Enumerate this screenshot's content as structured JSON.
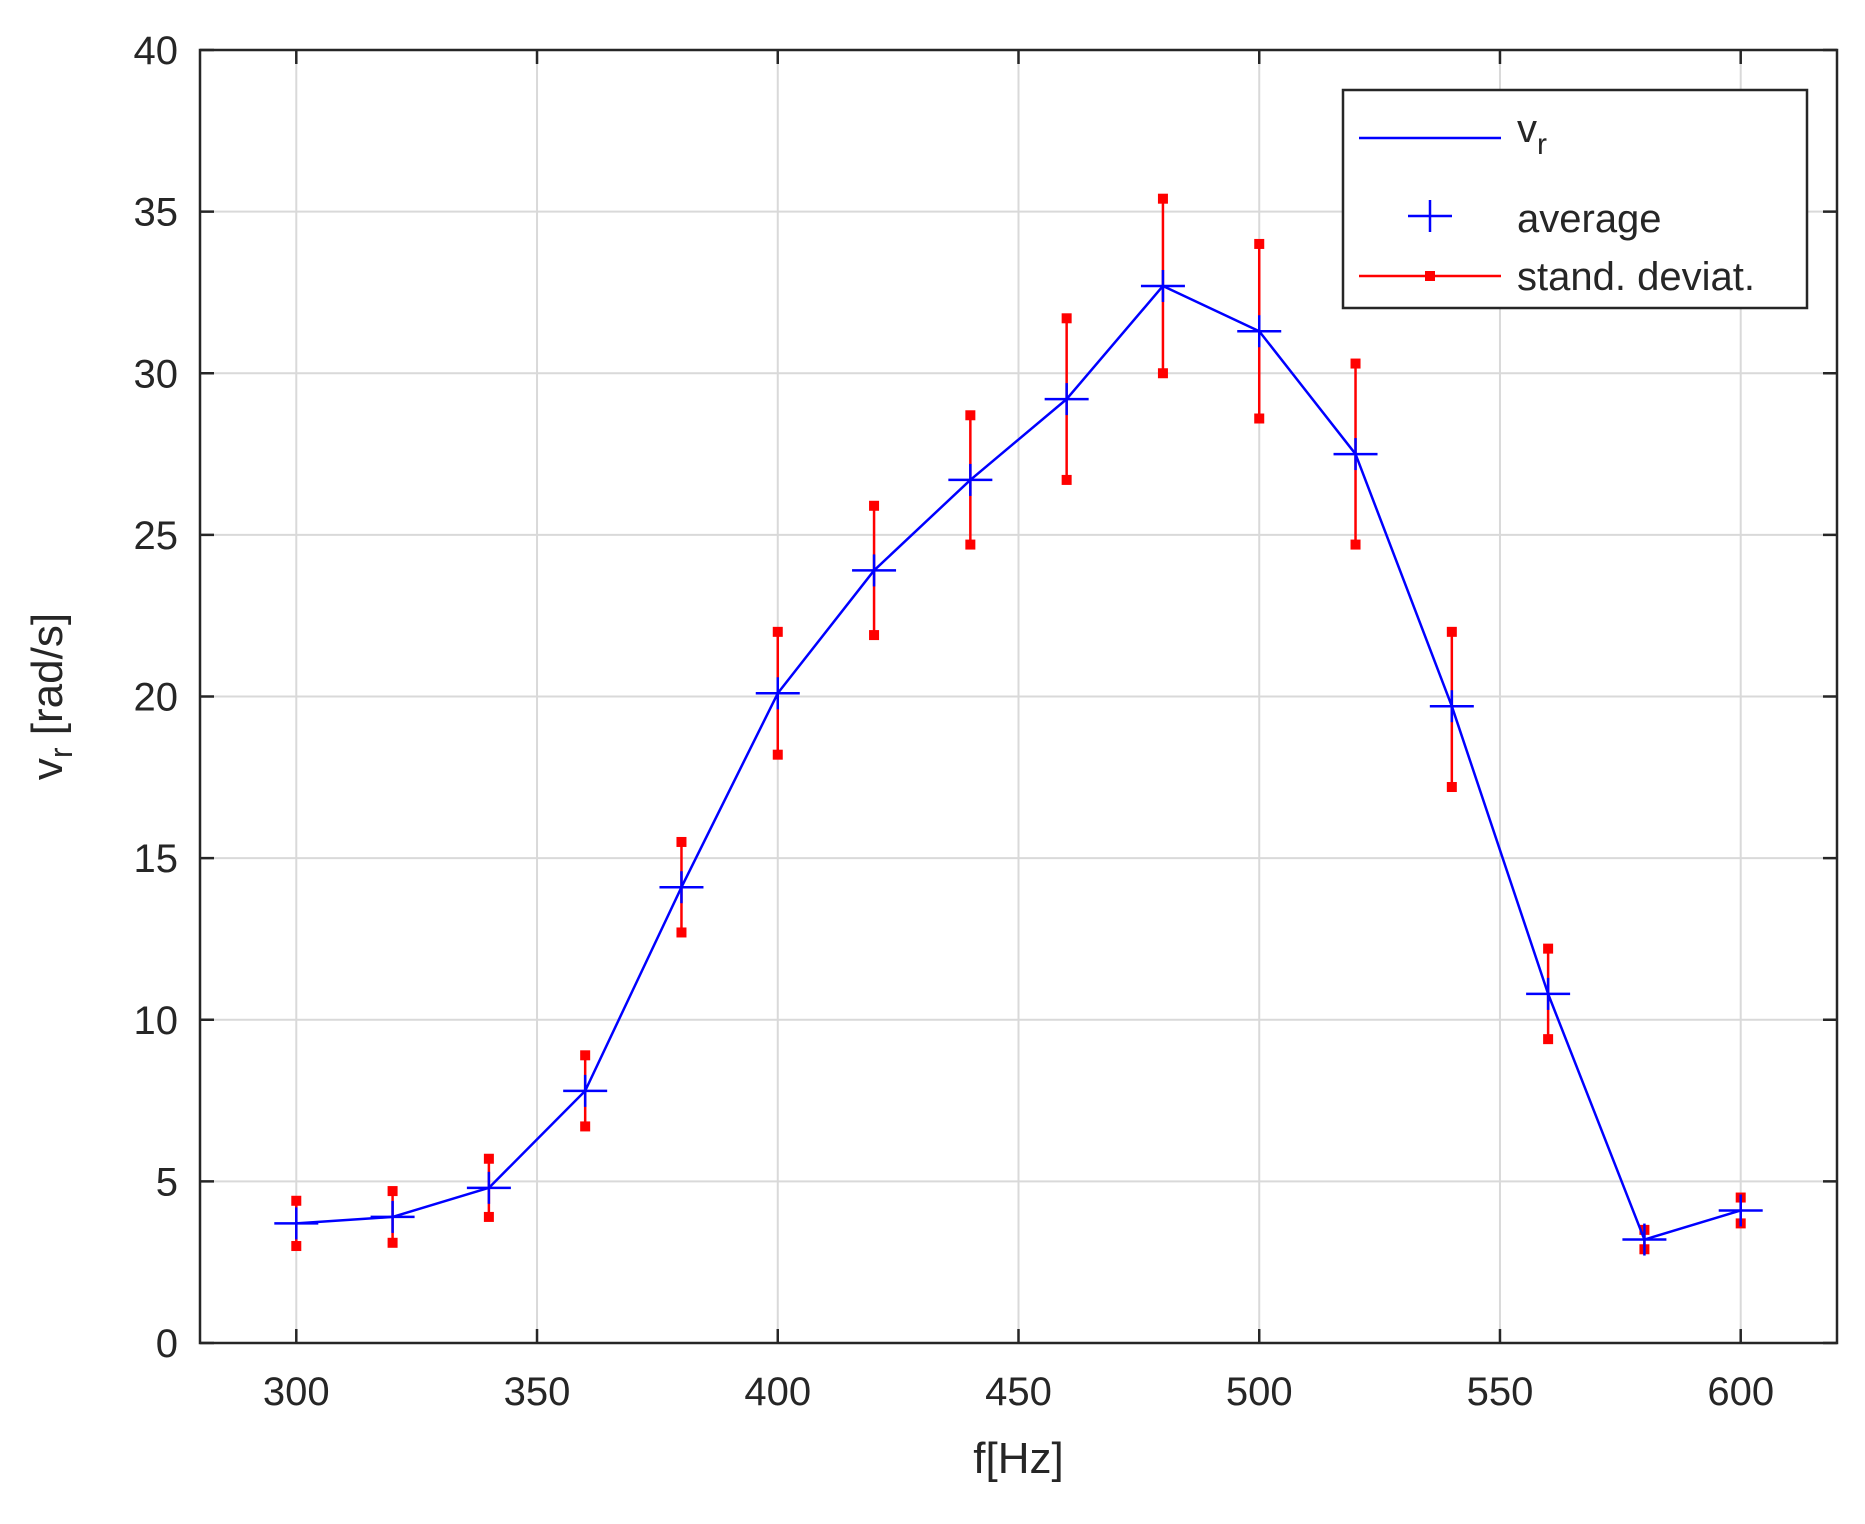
{
  "chart_data": {
    "type": "line",
    "x": [
      300,
      320,
      340,
      360,
      380,
      400,
      420,
      440,
      460,
      480,
      500,
      520,
      540,
      560,
      580,
      600
    ],
    "series": [
      {
        "name": "average",
        "values": [
          3.7,
          3.9,
          4.8,
          7.8,
          14.1,
          20.1,
          23.9,
          26.7,
          29.2,
          32.7,
          31.3,
          27.5,
          19.7,
          10.8,
          3.2,
          4.1
        ]
      }
    ],
    "error_bars": {
      "name": "stand. deviat.",
      "lower": [
        3.0,
        3.1,
        3.9,
        6.7,
        12.7,
        18.2,
        21.9,
        24.7,
        26.7,
        30.0,
        28.6,
        24.7,
        17.2,
        9.4,
        2.9,
        3.7
      ],
      "upper": [
        4.4,
        4.7,
        5.7,
        8.9,
        15.5,
        22.0,
        25.9,
        28.7,
        31.7,
        35.4,
        34.0,
        30.3,
        22.0,
        12.2,
        3.5,
        4.5
      ]
    },
    "xlabel": "f[Hz]",
    "ylabel": {
      "base": "v",
      "sub": "r",
      "rest": " [rad/s]"
    },
    "xlim": [
      280,
      620
    ],
    "ylim": [
      0,
      40
    ],
    "xticks": [
      "300",
      "350",
      "400",
      "450",
      "500",
      "550",
      "600"
    ],
    "yticks": [
      "0",
      "5",
      "10",
      "15",
      "20",
      "25",
      "30",
      "35",
      "40"
    ],
    "grid": true,
    "legend": {
      "position": "top-right",
      "entries": [
        {
          "kind": "line",
          "label": "v",
          "sub": "r"
        },
        {
          "kind": "marker",
          "label": "average"
        },
        {
          "kind": "errorbar",
          "label": "stand. deviat."
        }
      ]
    },
    "colors": {
      "line": "#0000ff",
      "error": "#ff0000",
      "grid": "#d9d9d9",
      "axes": "#262626"
    }
  }
}
